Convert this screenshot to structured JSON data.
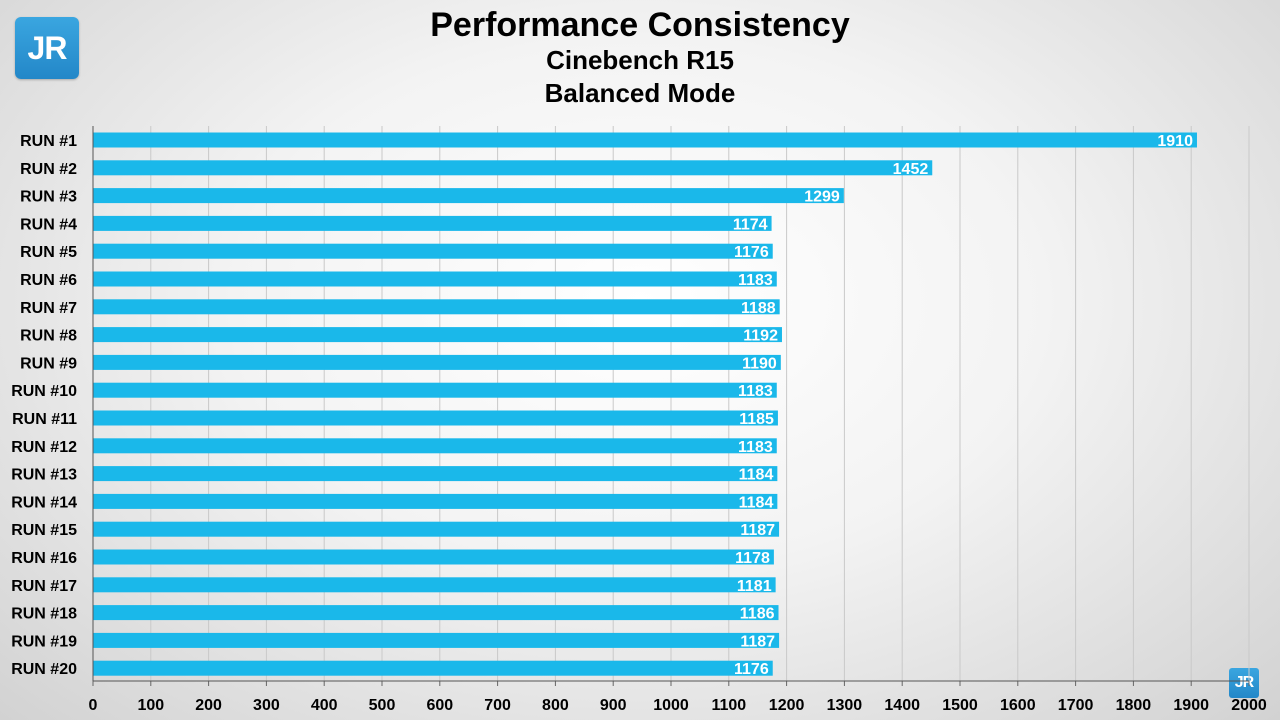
{
  "logo": {
    "text": "JR"
  },
  "logo_small": {
    "text": "JR"
  },
  "chart_data": {
    "type": "bar",
    "orientation": "horizontal",
    "title": "Performance Consistency",
    "subtitle": "Cinebench R15",
    "subtitle2": "Balanced Mode",
    "categories": [
      "RUN #1",
      "RUN #2",
      "RUN #3",
      "RUN #4",
      "RUN #5",
      "RUN #6",
      "RUN #7",
      "RUN #8",
      "RUN #9",
      "RUN #10",
      "RUN #11",
      "RUN #12",
      "RUN #13",
      "RUN #14",
      "RUN #15",
      "RUN #16",
      "RUN #17",
      "RUN #18",
      "RUN #19",
      "RUN #20"
    ],
    "values": [
      1910,
      1452,
      1299,
      1174,
      1176,
      1183,
      1188,
      1192,
      1190,
      1183,
      1185,
      1183,
      1184,
      1184,
      1187,
      1178,
      1181,
      1186,
      1187,
      1176
    ],
    "xlim": [
      0,
      2000
    ],
    "xticks": [
      0,
      100,
      200,
      300,
      400,
      500,
      600,
      700,
      800,
      900,
      1000,
      1100,
      1200,
      1300,
      1400,
      1500,
      1600,
      1700,
      1800,
      1900,
      2000
    ],
    "grid": true,
    "bar_color": "#1ab8ea",
    "data_labels": true
  }
}
